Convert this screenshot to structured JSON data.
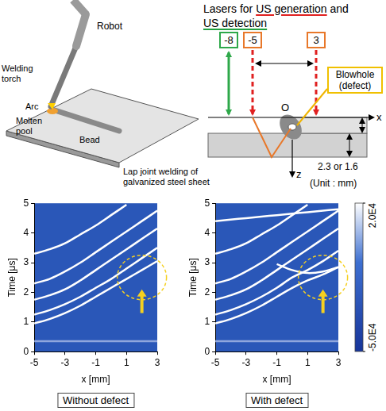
{
  "diagram": {
    "schematic": {
      "robot": "Robot",
      "torch": "Welding torch",
      "arc": "Arc",
      "pool": "Molten pool",
      "bead": "Bead",
      "caption": "Lap joint welding of galvanized steel sheet"
    },
    "title_lines": [
      [
        {
          "text": "Lasers for "
        },
        {
          "text": "US generation",
          "color": "#e02020"
        },
        {
          "text": " and"
        }
      ],
      [
        {
          "text": "US detection",
          "color": "#22a040"
        }
      ]
    ],
    "lasers": [
      {
        "x": -8,
        "color": "#2ea84a"
      },
      {
        "x": -5,
        "color": "#e8782a"
      },
      {
        "x": 3,
        "color": "#e8782a"
      }
    ],
    "defect_label": "Blowhole (defect)",
    "origin": "O",
    "x_axis": "x",
    "z_axis": "z",
    "thickness": "2.3 or 1.6",
    "unit": "(Unit : mm)"
  },
  "chart_data": [
    {
      "type": "line",
      "title": "Without defect",
      "x_label": "x [mm]",
      "y_label": "Time [μs]",
      "x": [
        -5,
        -4,
        -3,
        -2,
        -1,
        0,
        1,
        2,
        3
      ],
      "series": [
        {
          "color": "#8fa6dd",
          "values": [
            0.35,
            0.35,
            0.35,
            0.35,
            0.35,
            0.35,
            0.35,
            0.35,
            0.35
          ]
        },
        {
          "color": "#ffffff",
          "values": [
            0.95,
            1.1,
            1.3,
            1.55,
            1.85,
            2.15,
            2.45,
            2.75,
            3.05
          ]
        },
        {
          "color": "#ffffff",
          "values": [
            1.25,
            1.4,
            1.6,
            1.85,
            2.15,
            2.45,
            2.8,
            3.15,
            3.5
          ]
        },
        {
          "color": "#ffffff",
          "values": [
            1.75,
            1.9,
            2.1,
            2.4,
            2.75,
            3.1,
            3.45,
            3.8,
            4.15
          ]
        },
        {
          "color": "#ffffff",
          "values": [
            2.3,
            2.45,
            2.7,
            3.0,
            3.35,
            3.7,
            4.05,
            4.4,
            4.75
          ]
        },
        {
          "color": "#ffffff",
          "values": [
            3.3,
            3.45,
            3.65,
            3.95,
            4.25,
            4.6,
            4.95,
            null,
            null
          ]
        }
      ],
      "xlim": [
        -5,
        3
      ],
      "xticks": [
        -5,
        -3,
        -1,
        1,
        3
      ],
      "ylim": [
        0,
        5
      ],
      "yticks": [
        0,
        1,
        2,
        3,
        4,
        5
      ],
      "grid": false,
      "highlight": {
        "x": 2.0,
        "time": 2.5,
        "x_radius": 1.6,
        "time_radius": 0.75
      },
      "arrow": {
        "x": 2.0,
        "from_time": 1.3,
        "to_time": 2.1
      }
    },
    {
      "type": "line",
      "title": "With defect",
      "x_label": "x [mm]",
      "y_label": "Time [μs]",
      "x": [
        -5,
        -4,
        -3,
        -2,
        -1,
        0,
        1,
        2,
        3
      ],
      "series": [
        {
          "color": "#8fa6dd",
          "values": [
            0.35,
            0.35,
            0.35,
            0.35,
            0.35,
            0.35,
            0.35,
            0.35,
            0.35
          ]
        },
        {
          "color": "#ffffff",
          "values": [
            0.95,
            1.1,
            1.3,
            1.55,
            1.85,
            2.15,
            2.4,
            2.6,
            2.85
          ]
        },
        {
          "color": "#ffffff",
          "values": [
            1.25,
            1.4,
            1.6,
            1.85,
            2.15,
            2.5,
            2.75,
            3.05,
            3.4
          ]
        },
        {
          "color": "#ffffff",
          "values": [
            null,
            null,
            null,
            null,
            2.95,
            2.75,
            2.65,
            2.7,
            2.85
          ]
        },
        {
          "color": "#ffffff",
          "values": [
            1.75,
            1.9,
            2.1,
            2.4,
            2.75,
            3.1,
            3.45,
            3.8,
            4.15
          ]
        },
        {
          "color": "#ffffff",
          "values": [
            2.3,
            2.45,
            2.7,
            3.0,
            3.35,
            3.7,
            4.05,
            4.4,
            4.75
          ]
        },
        {
          "color": "#ffffff",
          "values": [
            3.3,
            3.45,
            3.65,
            3.95,
            4.25,
            4.6,
            4.95,
            null,
            null
          ]
        },
        {
          "color": "#ffffff",
          "values": [
            4.4,
            4.45,
            4.5,
            4.55,
            4.6,
            4.65,
            4.7,
            4.75,
            4.8
          ]
        }
      ],
      "xlim": [
        -5,
        3
      ],
      "xticks": [
        -5,
        -3,
        -1,
        1,
        3
      ],
      "ylim": [
        0,
        5
      ],
      "yticks": [
        0,
        1,
        2,
        3,
        4,
        5
      ],
      "grid": false,
      "highlight": {
        "x": 2.0,
        "time": 2.5,
        "x_radius": 1.6,
        "time_radius": 0.75
      },
      "arrow": {
        "x": 2.0,
        "from_time": 1.3,
        "to_time": 2.1
      },
      "colorbar": {
        "range": [
          -50000,
          20000
        ],
        "ticks": [
          {
            "value": 20000,
            "label": "2.0E4"
          },
          {
            "value": -50000,
            "label": "-5.0E4"
          }
        ]
      }
    }
  ]
}
